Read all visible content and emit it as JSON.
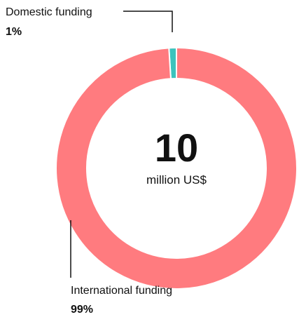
{
  "chart_data": {
    "type": "pie",
    "variant": "donut",
    "center_value": "10",
    "center_unit": "million US$",
    "slices": [
      {
        "name": "Domestic funding",
        "percent_label": "1%",
        "value": 1,
        "color": "#3cc3bd"
      },
      {
        "name": "International funding",
        "percent_label": "99%",
        "value": 99,
        "color": "#ff7b7f"
      }
    ],
    "start": "top",
    "direction": "counter-clockwise from top for first slice",
    "legend": "none"
  }
}
